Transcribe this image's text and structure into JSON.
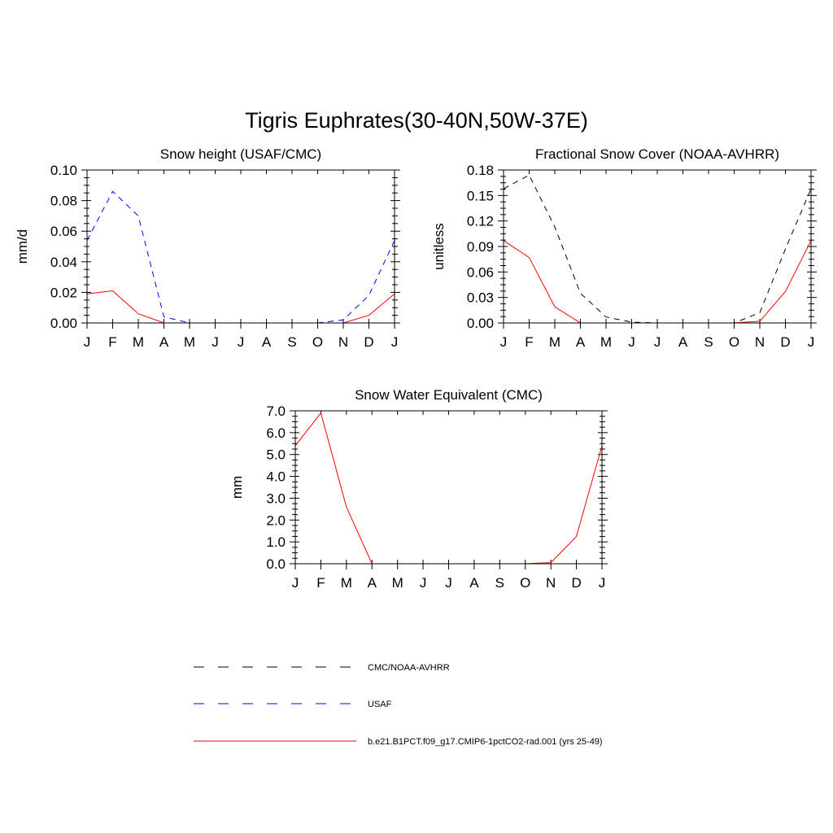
{
  "page_title": "Tigris Euphrates(30-40N,50W-37E)",
  "colors": {
    "model": "#ff0000",
    "usaf": "#0000ff",
    "cmc": "#000000"
  },
  "months": [
    "J",
    "F",
    "M",
    "A",
    "M",
    "J",
    "J",
    "A",
    "S",
    "O",
    "N",
    "D",
    "J"
  ],
  "chart_data": [
    {
      "type": "line",
      "title": "Snow height (USAF/CMC)",
      "ylabel": "mm/d",
      "ylim": [
        0,
        0.1
      ],
      "yticks": [
        "0.00",
        "0.02",
        "0.04",
        "0.06",
        "0.08",
        "0.10"
      ],
      "categories": [
        "J",
        "F",
        "M",
        "A",
        "M",
        "J",
        "J",
        "A",
        "S",
        "O",
        "N",
        "D",
        "J"
      ],
      "series": [
        {
          "name": "USAF",
          "style": "dashed",
          "color": "#0000ff",
          "values": [
            0.054,
            0.086,
            0.07,
            0.004,
            0.0,
            0.0,
            0.0,
            0.0,
            0.0,
            0.0,
            0.002,
            0.018,
            0.054
          ]
        },
        {
          "name": "CMC/NOAA-AVHRR",
          "style": "dashed",
          "color": "#000000",
          "values": [
            0.0,
            0.0,
            0.0,
            0.0,
            0.0,
            0.0,
            0.0,
            0.0,
            0.0,
            0.0,
            0.0,
            0.0,
            0.0
          ]
        },
        {
          "name": "b.e21.B1PCT.f09_g17.CMIP6-1pctCO2-rad.001 (yrs 25-49)",
          "style": "solid",
          "color": "#ff0000",
          "values": [
            0.019,
            0.021,
            0.006,
            0.0,
            0.0,
            0.0,
            0.0,
            0.0,
            0.0,
            0.0,
            0.0,
            0.005,
            0.019
          ]
        }
      ]
    },
    {
      "type": "line",
      "title": "Fractional Snow Cover (NOAA-AVHRR)",
      "ylabel": "unitless",
      "ylim": [
        0,
        0.18
      ],
      "yticks": [
        "0.00",
        "0.03",
        "0.06",
        "0.09",
        "0.12",
        "0.15",
        "0.18"
      ],
      "categories": [
        "J",
        "F",
        "M",
        "A",
        "M",
        "J",
        "J",
        "A",
        "S",
        "O",
        "N",
        "D",
        "J"
      ],
      "series": [
        {
          "name": "CMC/NOAA-AVHRR",
          "style": "dashed",
          "color": "#000000",
          "values": [
            0.158,
            0.174,
            0.113,
            0.035,
            0.007,
            0.001,
            0.0,
            0.0,
            0.0,
            0.0,
            0.012,
            0.087,
            0.158
          ]
        },
        {
          "name": "b.e21.B1PCT.f09_g17.CMIP6-1pctCO2-rad.001 (yrs 25-49)",
          "style": "solid",
          "color": "#ff0000",
          "values": [
            0.097,
            0.077,
            0.019,
            0.0,
            0.0,
            0.0,
            0.0,
            0.0,
            0.0,
            0.0,
            0.002,
            0.037,
            0.097
          ]
        }
      ]
    },
    {
      "type": "line",
      "title": "Snow Water Equivalent (CMC)",
      "ylabel": "mm",
      "ylim": [
        0,
        7
      ],
      "yticks": [
        "0.0",
        "1.0",
        "2.0",
        "3.0",
        "4.0",
        "5.0",
        "6.0",
        "7.0"
      ],
      "categories": [
        "J",
        "F",
        "M",
        "A",
        "M",
        "J",
        "J",
        "A",
        "S",
        "O",
        "N",
        "D",
        "J"
      ],
      "series": [
        {
          "name": "CMC/NOAA-AVHRR",
          "style": "dashed",
          "color": "#000000",
          "values": [
            0.0,
            0.0,
            0.0,
            0.0,
            0.0,
            0.0,
            0.0,
            0.0,
            0.0,
            0.0,
            0.0,
            0.0,
            0.0
          ]
        },
        {
          "name": "b.e21.B1PCT.f09_g17.CMIP6-1pctCO2-rad.001 (yrs 25-49)",
          "style": "solid",
          "color": "#ff0000",
          "values": [
            5.4,
            6.9,
            2.6,
            0.0,
            0.0,
            0.0,
            0.0,
            0.0,
            0.0,
            0.0,
            0.05,
            1.25,
            5.4
          ]
        }
      ]
    }
  ],
  "legend": [
    {
      "label": "CMC/NOAA-AVHRR",
      "style": "dashed",
      "color": "#000000"
    },
    {
      "label": "USAF",
      "style": "dashed",
      "color": "#0000ff"
    },
    {
      "label": "b.e21.B1PCT.f09_g17.CMIP6-1pctCO2-rad.001 (yrs 25-49)",
      "style": "solid",
      "color": "#ff0000"
    }
  ]
}
